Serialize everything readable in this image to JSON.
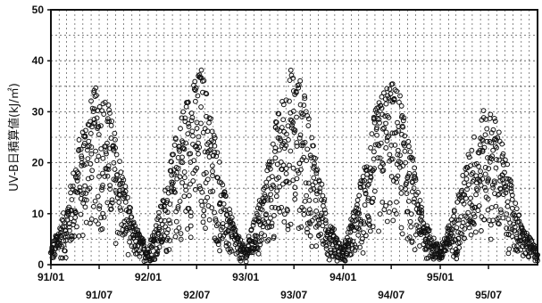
{
  "chart_data": {
    "type": "scatter",
    "title": "",
    "xlabel": "",
    "ylabel": "UV-B日積算値(kJ/㎡)",
    "ylim": [
      0,
      50
    ],
    "yticks": [
      0,
      10,
      20,
      30,
      40,
      50
    ],
    "xlim": [
      "1991-01-01",
      "1996-01-01"
    ],
    "xticks": [
      {
        "date": "1991-01-01",
        "label": "91/01",
        "row": 1
      },
      {
        "date": "1991-07-01",
        "label": "91/07",
        "row": 2
      },
      {
        "date": "1992-01-01",
        "label": "92/01",
        "row": 1
      },
      {
        "date": "1992-07-01",
        "label": "92/07",
        "row": 2
      },
      {
        "date": "1993-01-01",
        "label": "93/01",
        "row": 1
      },
      {
        "date": "1993-07-01",
        "label": "93/07",
        "row": 2
      },
      {
        "date": "1994-01-01",
        "label": "94/01",
        "row": 1
      },
      {
        "date": "1994-07-01",
        "label": "94/07",
        "row": 2
      },
      {
        "date": "1995-01-01",
        "label": "95/01",
        "row": 1
      },
      {
        "date": "1995-07-01",
        "label": "95/07",
        "row": 2
      }
    ],
    "grid": true,
    "marker": "open-circle",
    "series": [
      {
        "envelope": [
          {
            "x": "1991-01-01",
            "lo": 0.5,
            "hi": 3
          },
          {
            "x": "1991-03-01",
            "lo": 1,
            "hi": 12
          },
          {
            "x": "1991-05-01",
            "lo": 4,
            "hi": 28
          },
          {
            "x": "1991-06-15",
            "lo": 6,
            "hi": 35
          },
          {
            "x": "1991-08-01",
            "lo": 5,
            "hi": 33
          },
          {
            "x": "1991-09-15",
            "lo": 3,
            "hi": 22
          },
          {
            "x": "1991-11-01",
            "lo": 1,
            "hi": 9
          },
          {
            "x": "1992-01-01",
            "lo": 0.5,
            "hi": 3
          },
          {
            "x": "1992-03-01",
            "lo": 1,
            "hi": 14
          },
          {
            "x": "1992-05-01",
            "lo": 4,
            "hi": 30
          },
          {
            "x": "1992-06-15",
            "lo": 5,
            "hi": 36
          },
          {
            "x": "1992-07-20",
            "lo": 6,
            "hi": 39
          },
          {
            "x": "1992-09-01",
            "lo": 3,
            "hi": 28
          },
          {
            "x": "1992-10-15",
            "lo": 1,
            "hi": 14
          },
          {
            "x": "1992-12-01",
            "lo": 0.5,
            "hi": 6
          },
          {
            "x": "1993-01-01",
            "lo": 0.5,
            "hi": 3
          },
          {
            "x": "1993-03-01",
            "lo": 1,
            "hi": 14
          },
          {
            "x": "1993-05-01",
            "lo": 4,
            "hi": 30
          },
          {
            "x": "1993-06-20",
            "lo": 6,
            "hi": 39
          },
          {
            "x": "1993-08-01",
            "lo": 5,
            "hi": 36
          },
          {
            "x": "1993-09-15",
            "lo": 3,
            "hi": 24
          },
          {
            "x": "1993-11-01",
            "lo": 1,
            "hi": 10
          },
          {
            "x": "1994-01-01",
            "lo": 0.5,
            "hi": 3
          },
          {
            "x": "1994-03-01",
            "lo": 1,
            "hi": 14
          },
          {
            "x": "1994-05-01",
            "lo": 4,
            "hi": 30
          },
          {
            "x": "1994-06-20",
            "lo": 6,
            "hi": 37
          },
          {
            "x": "1994-08-01",
            "lo": 5,
            "hi": 34
          },
          {
            "x": "1994-09-15",
            "lo": 3,
            "hi": 22
          },
          {
            "x": "1994-11-01",
            "lo": 1,
            "hi": 9
          },
          {
            "x": "1995-01-01",
            "lo": 0.5,
            "hi": 3
          },
          {
            "x": "1995-03-01",
            "lo": 1,
            "hi": 12
          },
          {
            "x": "1995-05-01",
            "lo": 3,
            "hi": 25
          },
          {
            "x": "1995-06-20",
            "lo": 5,
            "hi": 31
          },
          {
            "x": "1995-08-01",
            "lo": 4,
            "hi": 29
          },
          {
            "x": "1995-09-15",
            "lo": 2,
            "hi": 18
          },
          {
            "x": "1995-11-01",
            "lo": 1,
            "hi": 8
          },
          {
            "x": "1995-12-31",
            "lo": 0.5,
            "hi": 3
          }
        ],
        "note": "daily values, dense cloud; shape per year roughly triangular peaking near mid-year"
      }
    ]
  }
}
